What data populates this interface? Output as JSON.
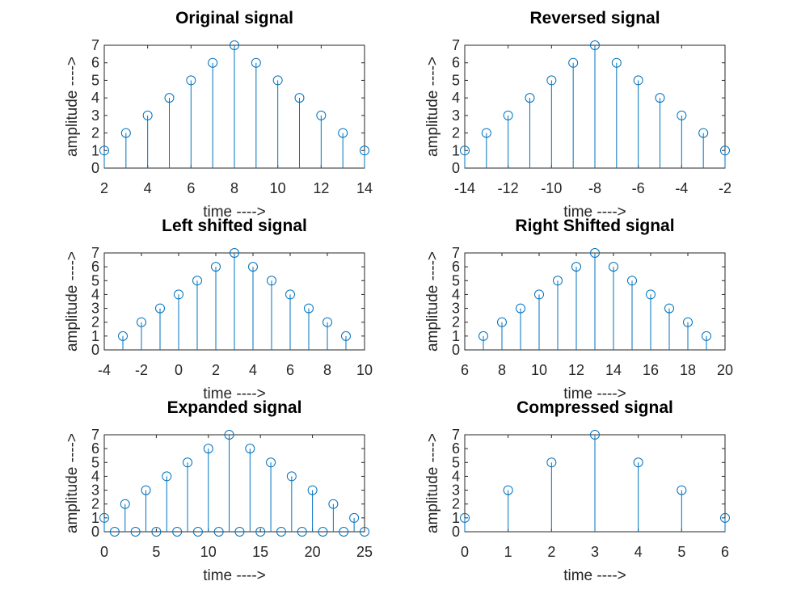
{
  "chart_data": [
    {
      "type": "stem",
      "title": "Original signal",
      "xlabel": "time ---->",
      "ylabel": "amplitude ---->",
      "xlim": [
        2,
        14
      ],
      "ylim": [
        0,
        7
      ],
      "xticks": [
        2,
        4,
        6,
        8,
        10,
        12,
        14
      ],
      "yticks": [
        0,
        1,
        2,
        3,
        4,
        5,
        6,
        7
      ],
      "x": [
        2,
        3,
        4,
        5,
        6,
        7,
        8,
        9,
        10,
        11,
        12,
        13,
        14
      ],
      "y": [
        1,
        2,
        3,
        4,
        5,
        6,
        7,
        6,
        5,
        4,
        3,
        2,
        1
      ]
    },
    {
      "type": "stem",
      "title": "Reversed signal",
      "xlabel": "time ---->",
      "ylabel": "amplitude ---->",
      "xlim": [
        -14,
        -2
      ],
      "ylim": [
        0,
        7
      ],
      "xticks": [
        -14,
        -12,
        -10,
        -8,
        -6,
        -4,
        -2
      ],
      "yticks": [
        0,
        1,
        2,
        3,
        4,
        5,
        6,
        7
      ],
      "x": [
        -14,
        -13,
        -12,
        -11,
        -10,
        -9,
        -8,
        -7,
        -6,
        -5,
        -4,
        -3,
        -2
      ],
      "y": [
        1,
        2,
        3,
        4,
        5,
        6,
        7,
        6,
        5,
        4,
        3,
        2,
        1
      ]
    },
    {
      "type": "stem",
      "title": "Left shifted signal",
      "xlabel": "time ---->",
      "ylabel": "amplitude ---->",
      "xlim": [
        -4,
        10
      ],
      "ylim": [
        0,
        7
      ],
      "xticks": [
        -4,
        -2,
        0,
        2,
        4,
        6,
        8,
        10
      ],
      "yticks": [
        0,
        1,
        2,
        3,
        4,
        5,
        6,
        7
      ],
      "x": [
        -3,
        -2,
        -1,
        0,
        1,
        2,
        3,
        4,
        5,
        6,
        7,
        8,
        9
      ],
      "y": [
        1,
        2,
        3,
        4,
        5,
        6,
        7,
        6,
        5,
        4,
        3,
        2,
        1
      ]
    },
    {
      "type": "stem",
      "title": "Right Shifted signal",
      "xlabel": "time ---->",
      "ylabel": "amplitude ---->",
      "xlim": [
        6,
        20
      ],
      "ylim": [
        0,
        7
      ],
      "xticks": [
        6,
        8,
        10,
        12,
        14,
        16,
        18,
        20
      ],
      "yticks": [
        0,
        1,
        2,
        3,
        4,
        5,
        6,
        7
      ],
      "x": [
        7,
        8,
        9,
        10,
        11,
        12,
        13,
        14,
        15,
        16,
        17,
        18,
        19
      ],
      "y": [
        1,
        2,
        3,
        4,
        5,
        6,
        7,
        6,
        5,
        4,
        3,
        2,
        1
      ]
    },
    {
      "type": "stem",
      "title": "Expanded signal",
      "xlabel": "time ---->",
      "ylabel": "amplitude ---->",
      "xlim": [
        0,
        25
      ],
      "ylim": [
        0,
        7
      ],
      "xticks": [
        0,
        5,
        10,
        15,
        20,
        25
      ],
      "yticks": [
        0,
        1,
        2,
        3,
        4,
        5,
        6,
        7
      ],
      "x": [
        0,
        1,
        2,
        3,
        4,
        5,
        6,
        7,
        8,
        9,
        10,
        11,
        12,
        13,
        14,
        15,
        16,
        17,
        18,
        19,
        20,
        21,
        22,
        23,
        24,
        25
      ],
      "y": [
        1,
        0,
        2,
        0,
        3,
        0,
        4,
        0,
        5,
        0,
        6,
        0,
        7,
        0,
        6,
        0,
        5,
        0,
        4,
        0,
        3,
        0,
        2,
        0,
        1,
        0
      ]
    },
    {
      "type": "stem",
      "title": "Compressed signal",
      "xlabel": "time ---->",
      "ylabel": "amplitude ---->",
      "xlim": [
        0,
        6
      ],
      "ylim": [
        0,
        7
      ],
      "xticks": [
        0,
        1,
        2,
        3,
        4,
        5,
        6
      ],
      "yticks": [
        0,
        1,
        2,
        3,
        4,
        5,
        6,
        7
      ],
      "x": [
        0,
        1,
        2,
        3,
        4,
        5,
        6
      ],
      "y": [
        1,
        3,
        5,
        7,
        5,
        3,
        1
      ]
    }
  ],
  "colors": {
    "stem": "#0072BD",
    "axes": "#262626",
    "title": "#000000"
  }
}
